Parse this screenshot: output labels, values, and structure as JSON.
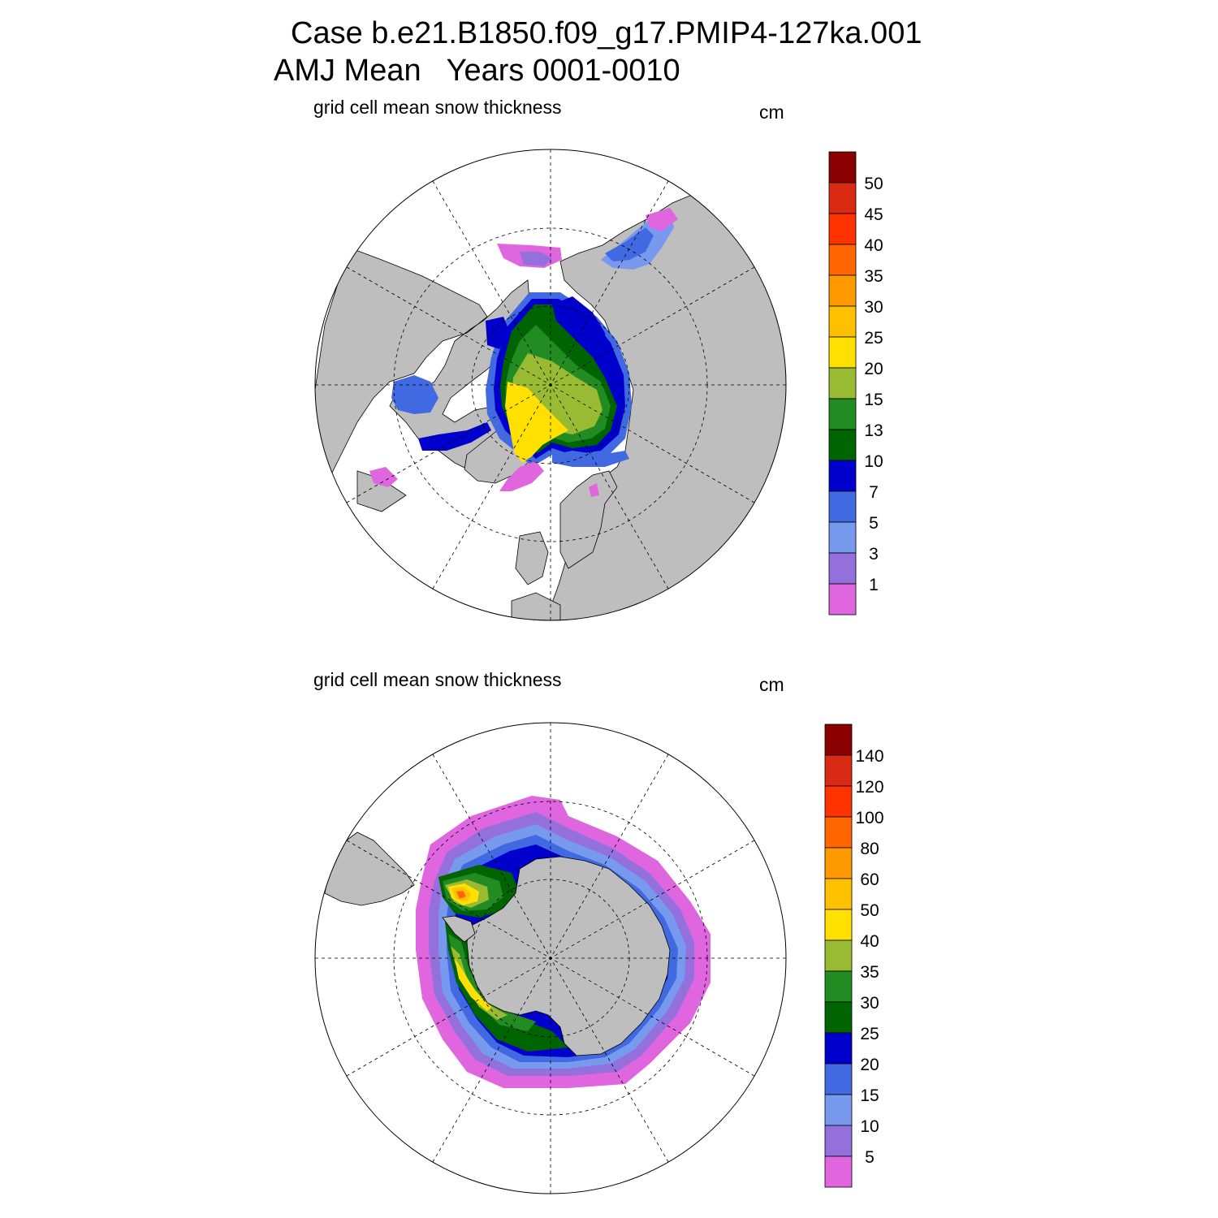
{
  "header": {
    "line1": "Case b.e21.B1850.f09_g17.PMIP4-127ka.001",
    "line2": "AMJ Mean   Years 0001-0010"
  },
  "panels": [
    {
      "id": "north",
      "title": "grid cell mean snow thickness",
      "units": "cm",
      "colorbar": {
        "labels": [
          "50",
          "45",
          "40",
          "35",
          "30",
          "25",
          "20",
          "15",
          "13",
          "10",
          "7",
          "5",
          "3",
          "1"
        ],
        "colors": [
          "#8B0000",
          "#D92A14",
          "#FF3300",
          "#FF6600",
          "#FF9900",
          "#FFC000",
          "#FFE000",
          "#99BB33",
          "#228B22",
          "#006400",
          "#0000CD",
          "#4169E1",
          "#7799EE",
          "#9370DB",
          "#E066E0"
        ]
      }
    },
    {
      "id": "south",
      "title": "grid cell mean snow thickness",
      "units": "cm",
      "colorbar": {
        "labels": [
          "140",
          "120",
          "100",
          "80",
          "60",
          "50",
          "40",
          "35",
          "30",
          "25",
          "20",
          "15",
          "10",
          "5"
        ],
        "colors": [
          "#8B0000",
          "#D92A14",
          "#FF3300",
          "#FF6600",
          "#FF9900",
          "#FFC000",
          "#FFE000",
          "#99BB33",
          "#228B22",
          "#006400",
          "#0000CD",
          "#4169E1",
          "#7799EE",
          "#9370DB",
          "#E066E0"
        ]
      }
    }
  ],
  "colors": {
    "land": "#BEBEBE",
    "ocean": "#FFFFFF"
  }
}
